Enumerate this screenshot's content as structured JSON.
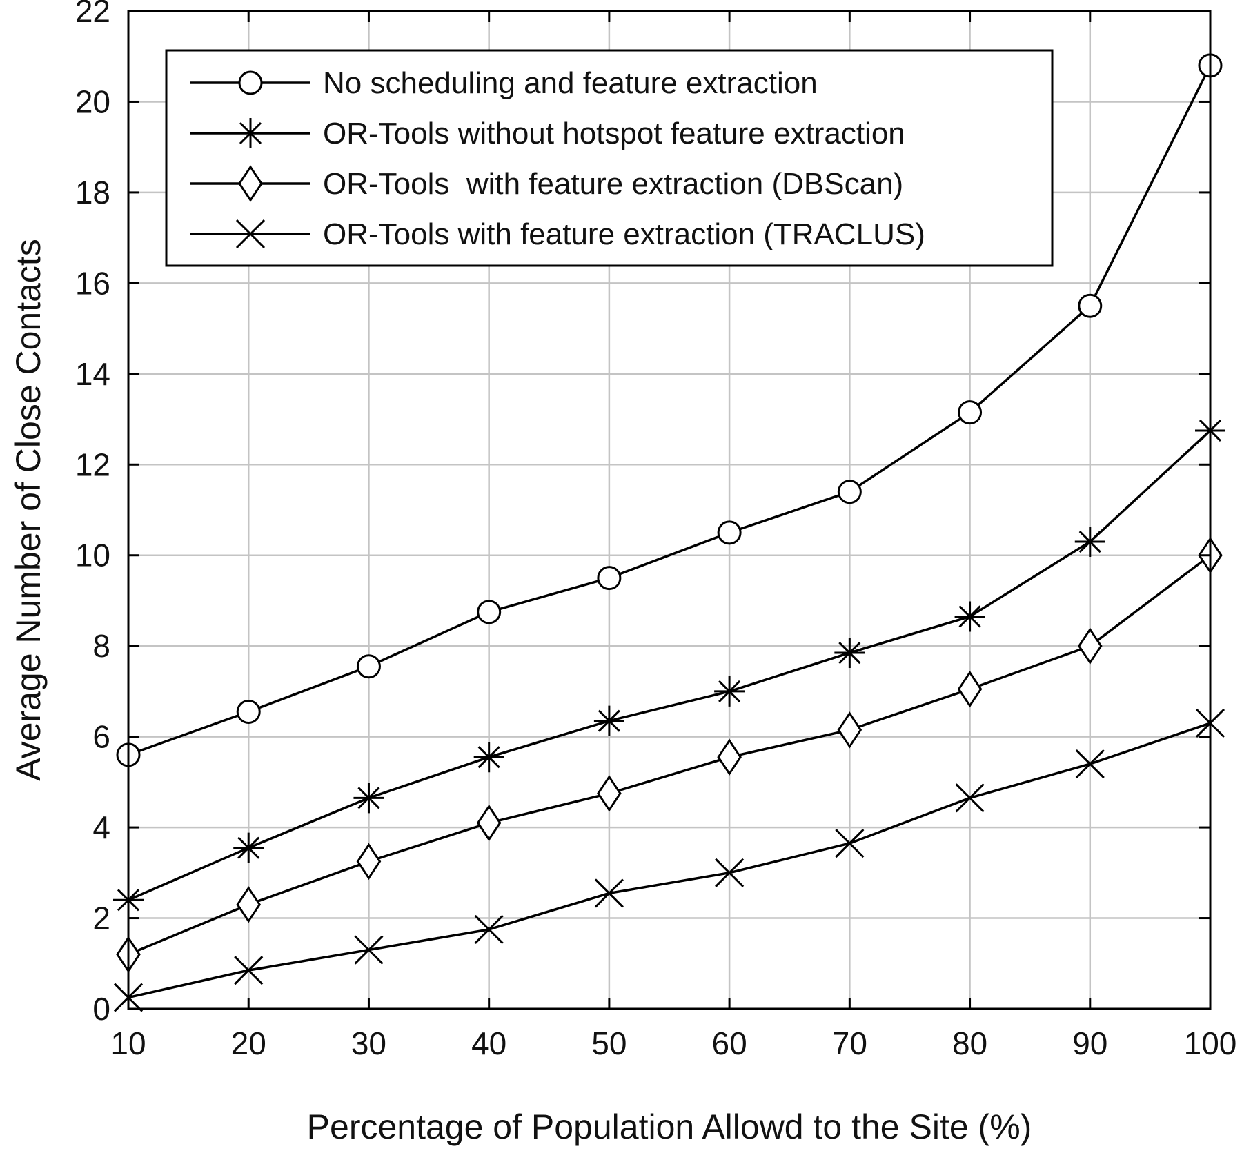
{
  "chart_data": {
    "type": "line",
    "title": "",
    "xlabel": "Percentage of Population Allowd to the Site (%)",
    "ylabel": "Average Number of Close Contacts",
    "x": [
      10,
      20,
      30,
      40,
      50,
      60,
      70,
      80,
      90,
      100
    ],
    "xlim": [
      10,
      100
    ],
    "ylim": [
      0,
      22
    ],
    "xticks": [
      10,
      20,
      30,
      40,
      50,
      60,
      70,
      80,
      90,
      100
    ],
    "yticks": [
      0,
      2,
      4,
      6,
      8,
      10,
      12,
      14,
      16,
      18,
      20,
      22
    ],
    "grid": true,
    "legend_position": "top",
    "series": [
      {
        "name": "No scheduling and feature extraction",
        "marker": "circle",
        "values": [
          5.6,
          6.55,
          7.55,
          8.75,
          9.5,
          10.5,
          11.4,
          13.15,
          15.5,
          20.8
        ]
      },
      {
        "name": "OR-Tools without hotspot feature extraction",
        "marker": "asterisk",
        "values": [
          2.4,
          3.55,
          4.65,
          5.55,
          6.35,
          7.0,
          7.85,
          8.65,
          10.3,
          12.75
        ]
      },
      {
        "name": "OR-Tools  with feature extraction (DBScan)",
        "marker": "diamond",
        "values": [
          1.2,
          2.3,
          3.25,
          4.1,
          4.75,
          5.55,
          6.15,
          7.05,
          8.0,
          10.0
        ]
      },
      {
        "name": "OR-Tools with feature extraction (TRACLUS)",
        "marker": "cross",
        "values": [
          0.25,
          0.85,
          1.3,
          1.75,
          2.55,
          3.0,
          3.65,
          4.65,
          5.4,
          6.3
        ]
      }
    ]
  }
}
